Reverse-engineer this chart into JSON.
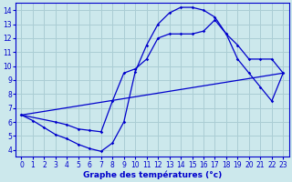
{
  "xlabel": "Graphe des températures (°c)",
  "bg_color": "#cce8ec",
  "grid_color": "#aacdd4",
  "line_color": "#0000cc",
  "xlim": [
    -0.5,
    23.5
  ],
  "ylim": [
    3.5,
    14.5
  ],
  "xticks": [
    0,
    1,
    2,
    3,
    4,
    5,
    6,
    7,
    8,
    9,
    10,
    11,
    12,
    13,
    14,
    15,
    16,
    17,
    18,
    19,
    20,
    21,
    22,
    23
  ],
  "yticks": [
    4,
    5,
    6,
    7,
    8,
    9,
    10,
    11,
    12,
    13,
    14
  ],
  "line1_x": [
    0,
    1,
    2,
    3,
    4,
    5,
    6,
    7,
    8,
    9,
    10,
    11,
    12,
    13,
    14,
    15,
    16,
    17,
    18,
    19,
    20,
    21,
    22,
    23
  ],
  "line1_y": [
    6.5,
    6.1,
    5.6,
    5.1,
    4.8,
    4.4,
    4.1,
    3.9,
    4.5,
    6.0,
    9.6,
    11.5,
    13.0,
    13.8,
    14.2,
    14.2,
    14.0,
    13.5,
    12.3,
    11.5,
    10.5,
    10.5,
    10.5,
    9.5
  ],
  "line2_x": [
    0,
    3,
    4,
    5,
    6,
    7,
    8,
    9,
    10,
    11,
    12,
    13,
    14,
    15,
    16,
    17,
    18,
    19,
    20,
    21,
    22,
    23
  ],
  "line2_y": [
    6.5,
    6.0,
    5.8,
    5.5,
    5.4,
    5.3,
    7.5,
    9.5,
    9.8,
    10.5,
    12.0,
    12.3,
    12.3,
    12.3,
    12.5,
    13.3,
    12.3,
    10.5,
    9.5,
    8.5,
    7.5,
    9.5
  ],
  "line3_x": [
    0,
    23
  ],
  "line3_y": [
    6.5,
    9.5
  ],
  "xlabel_fontsize": 6.5,
  "tick_fontsize": 5.5
}
